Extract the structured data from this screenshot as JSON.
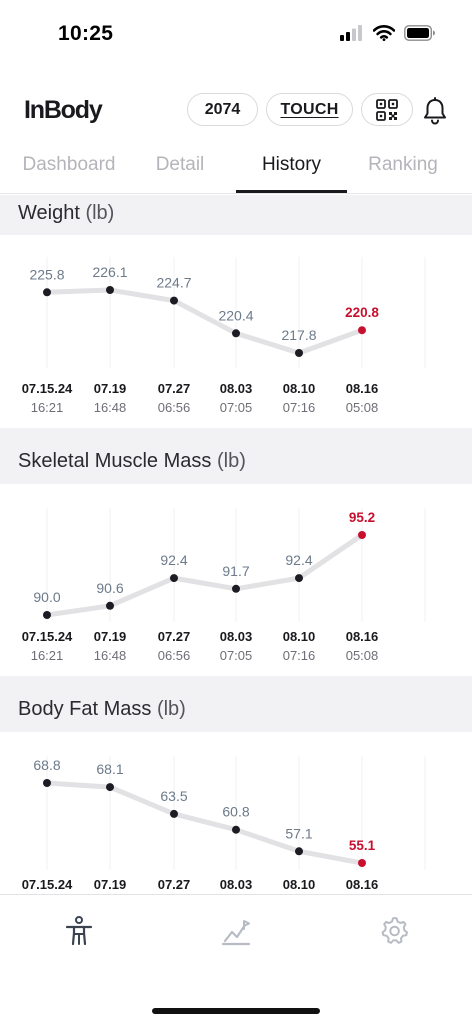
{
  "status_bar": {
    "time": "10:25"
  },
  "header": {
    "logo": "InBody",
    "count_badge": "2074",
    "touch_label": "TOUCH"
  },
  "tabs": [
    {
      "label": "Dashboard",
      "active": false
    },
    {
      "label": "Detail",
      "active": false
    },
    {
      "label": "History",
      "active": true
    },
    {
      "label": "Ranking",
      "active": false
    }
  ],
  "colors": {
    "accent_red": "#c8102e",
    "point": "#1c1c24",
    "line": "#e2e2e5",
    "label": "#6c7a8a",
    "band": "#f2f2f4"
  },
  "sections": [
    {
      "title": "Weight",
      "unit": "(lb)"
    },
    {
      "title": "Skeletal Muscle Mass",
      "unit": "(lb)"
    },
    {
      "title": "Body Fat Mass",
      "unit": "(lb)"
    }
  ],
  "chart_data": [
    {
      "type": "line",
      "title": "Weight (lb)",
      "x": [
        "07.15.24",
        "07.19",
        "07.27",
        "08.03",
        "08.10",
        "08.16"
      ],
      "x_sub": [
        "16:21",
        "16:48",
        "06:56",
        "07:05",
        "07:16",
        "05:08"
      ],
      "values": [
        225.8,
        226.1,
        224.7,
        220.4,
        217.8,
        220.8
      ],
      "labels": [
        "225.8",
        "226.1",
        "224.7",
        "220.4",
        "217.8",
        "220.8"
      ],
      "highlight_last": true
    },
    {
      "type": "line",
      "title": "Skeletal Muscle Mass (lb)",
      "x": [
        "07.15.24",
        "07.19",
        "07.27",
        "08.03",
        "08.10",
        "08.16"
      ],
      "x_sub": [
        "16:21",
        "16:48",
        "06:56",
        "07:05",
        "07:16",
        "05:08"
      ],
      "values": [
        90.0,
        90.6,
        92.4,
        91.7,
        92.4,
        95.2
      ],
      "labels": [
        "90.0",
        "90.6",
        "92.4",
        "91.7",
        "92.4",
        "95.2"
      ],
      "highlight_last": true
    },
    {
      "type": "line",
      "title": "Body Fat Mass (lb)",
      "x": [
        "07.15.24",
        "07.19",
        "07.27",
        "08.03",
        "08.10",
        "08.16"
      ],
      "x_sub": [],
      "values": [
        68.8,
        68.1,
        63.5,
        60.8,
        57.1,
        55.1
      ],
      "labels": [
        "68.8",
        "68.1",
        "63.5",
        "60.8",
        "57.1",
        "55.1"
      ],
      "highlight_last": true
    }
  ],
  "bottom_nav": [
    {
      "icon": "body-figure-icon",
      "active": true
    },
    {
      "icon": "chart-trend-icon",
      "active": false
    },
    {
      "icon": "settings-gear-icon",
      "active": false
    }
  ]
}
